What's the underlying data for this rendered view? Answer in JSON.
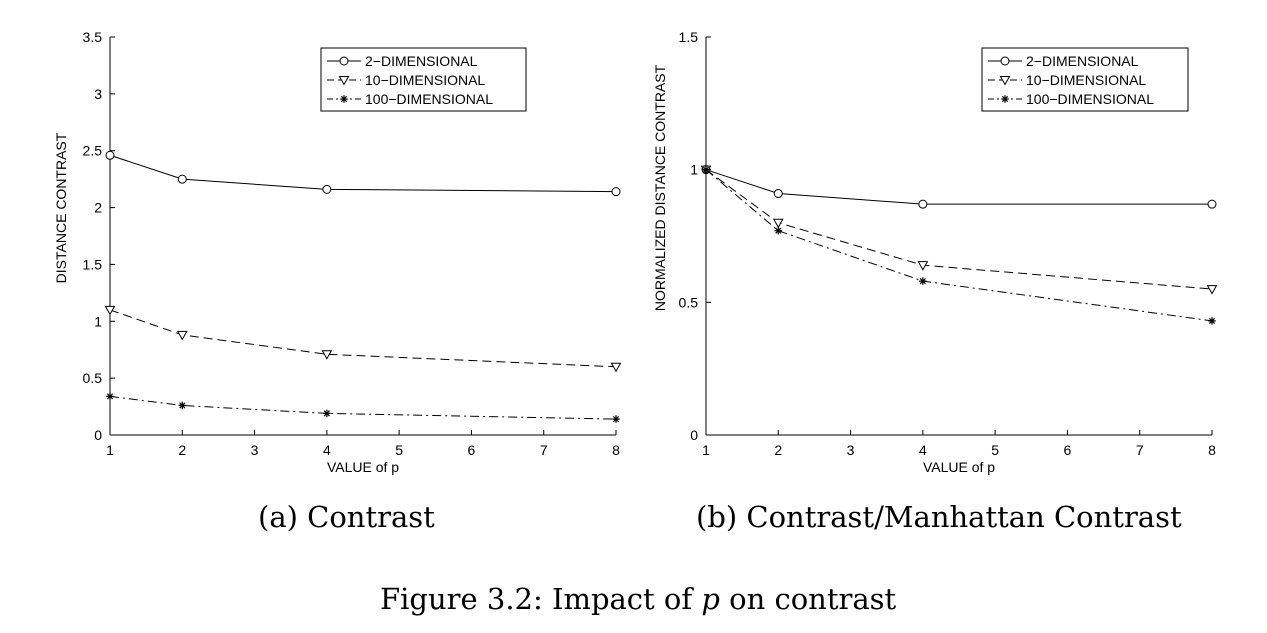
{
  "chart_data": [
    {
      "type": "line",
      "title": "",
      "xlabel": "VALUE of p",
      "ylabel": "DISTANCE CONTRAST",
      "xlim": [
        1,
        8
      ],
      "ylim": [
        0,
        3.5
      ],
      "xticks": [
        "1",
        "2",
        "3",
        "4",
        "5",
        "6",
        "7",
        "8"
      ],
      "yticks": [
        "0",
        "0.5",
        "1",
        "1.5",
        "2",
        "2.5",
        "3",
        "3.5"
      ],
      "legend_position": "top-right",
      "grid": false,
      "series": [
        {
          "name": "2−DIMENSIONAL",
          "marker": "circle",
          "dash": "solid",
          "x": [
            1,
            2,
            4,
            8
          ],
          "values": [
            2.46,
            2.25,
            2.16,
            2.14
          ]
        },
        {
          "name": "10−DIMENSIONAL",
          "marker": "triangle-down",
          "dash": "dashed",
          "x": [
            1,
            2,
            4,
            8
          ],
          "values": [
            1.1,
            0.88,
            0.71,
            0.6
          ]
        },
        {
          "name": "100−DIMENSIONAL",
          "marker": "star",
          "dash": "dashdot",
          "x": [
            1,
            2,
            4,
            8
          ],
          "values": [
            0.34,
            0.26,
            0.19,
            0.14
          ]
        }
      ]
    },
    {
      "type": "line",
      "title": "",
      "xlabel": "VALUE of p",
      "ylabel": "NORMALIZED DISTANCE CONTRAST",
      "xlim": [
        1,
        8
      ],
      "ylim": [
        0,
        1.5
      ],
      "xticks": [
        "1",
        "2",
        "3",
        "4",
        "5",
        "6",
        "7",
        "8"
      ],
      "yticks": [
        "0",
        "0.5",
        "1",
        "1.5"
      ],
      "legend_position": "top-right",
      "grid": false,
      "series": [
        {
          "name": "2−DIMENSIONAL",
          "marker": "circle",
          "dash": "solid",
          "x": [
            1,
            2,
            4,
            8
          ],
          "values": [
            1.0,
            0.91,
            0.87,
            0.87
          ]
        },
        {
          "name": "10−DIMENSIONAL",
          "marker": "triangle-down",
          "dash": "dashed",
          "x": [
            1,
            2,
            4,
            8
          ],
          "values": [
            1.0,
            0.8,
            0.64,
            0.55
          ]
        },
        {
          "name": "100−DIMENSIONAL",
          "marker": "star",
          "dash": "dashdot",
          "x": [
            1,
            2,
            4,
            8
          ],
          "values": [
            1.0,
            0.77,
            0.58,
            0.43
          ]
        }
      ]
    }
  ],
  "captions": {
    "a": "(a) Contrast",
    "b": "(b) Contrast/Manhattan Contrast",
    "figure_prefix": "Figure 3.2: Impact of ",
    "figure_var": "p",
    "figure_suffix": " on contrast"
  }
}
